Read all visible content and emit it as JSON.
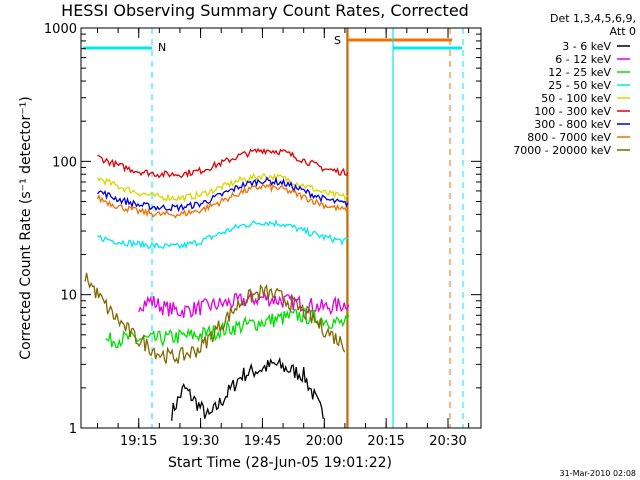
{
  "chart_data": {
    "type": "line",
    "title": "HESSI Observing Summary Count Rates, Corrected",
    "xlabel": "Start Time (28-Jun-05 19:01:22)",
    "ylabel": "Corrected Count Rate (s⁻¹ detector⁻¹)",
    "ylog": true,
    "ylim": [
      1,
      1000
    ],
    "xlim_minutes": [
      19.0167,
      20.6333
    ],
    "x_ticks": [
      "19:15",
      "19:30",
      "19:45",
      "20:00",
      "20:15",
      "20:30"
    ],
    "y_ticks": [
      "1",
      "10",
      "100",
      "1000"
    ],
    "legend_header": [
      "Det 1,3,4,5,6,9,",
      "Att 0"
    ],
    "legend_position": "right",
    "footer_date": "31-Mar-2010 02:08",
    "flag_labels": [
      "N",
      "S"
    ],
    "series": [
      {
        "name": "3 - 6 keV",
        "color": "#000000",
        "times": [
          "19:23",
          "19:26",
          "19:32",
          "19:40",
          "19:48",
          "19:55",
          "20:00"
        ],
        "values": [
          1.3,
          2.0,
          1.2,
          2.5,
          3.0,
          2.5,
          1.2
        ]
      },
      {
        "name": "6 - 12 keV",
        "color": "#e000e0",
        "times": [
          "19:15",
          "19:18",
          "19:21",
          "19:25",
          "19:30",
          "19:35",
          "19:40",
          "19:45",
          "19:50",
          "19:55",
          "20:00",
          "20:05",
          "20:06"
        ],
        "values": [
          8.5,
          9.0,
          8.0,
          7.5,
          8.0,
          8.5,
          9.0,
          9.5,
          9.0,
          8.5,
          8.0,
          8.5,
          9.0
        ]
      },
      {
        "name": "12 - 25 keV",
        "color": "#00e000",
        "times": [
          "19:07",
          "19:12",
          "19:18",
          "19:24",
          "19:30",
          "19:36",
          "19:42",
          "19:48",
          "19:54",
          "20:00",
          "20:05",
          "20:06"
        ],
        "values": [
          4.5,
          4.7,
          4.6,
          4.8,
          5.0,
          5.5,
          6.0,
          6.5,
          7.0,
          6.5,
          6.0,
          6.2
        ]
      },
      {
        "name": "25 - 50 keV",
        "color": "#00e8f0",
        "times": [
          "19:05",
          "19:10",
          "19:15",
          "19:20",
          "19:25",
          "19:30",
          "19:35",
          "19:40",
          "19:45",
          "19:50",
          "19:55",
          "20:00",
          "20:05",
          "20:06"
        ],
        "values": [
          27,
          25,
          24,
          23,
          23,
          25,
          29,
          33,
          35,
          34,
          30,
          27,
          25,
          26
        ]
      },
      {
        "name": "50 - 100 keV",
        "color": "#d8d800",
        "times": [
          "19:05",
          "19:10",
          "19:15",
          "19:20",
          "19:25",
          "19:30",
          "19:35",
          "19:40",
          "19:45",
          "19:50",
          "19:55",
          "20:00",
          "20:05",
          "20:06"
        ],
        "values": [
          75,
          65,
          58,
          54,
          53,
          56,
          64,
          73,
          78,
          75,
          66,
          58,
          54,
          56
        ]
      },
      {
        "name": "100 - 300 keV",
        "color": "#e00000",
        "times": [
          "19:05",
          "19:10",
          "19:15",
          "19:20",
          "19:25",
          "19:30",
          "19:35",
          "19:40",
          "19:45",
          "19:50",
          "19:55",
          "20:00",
          "20:05",
          "20:06"
        ],
        "values": [
          108,
          93,
          84,
          80,
          80,
          85,
          97,
          112,
          122,
          118,
          102,
          88,
          82,
          86
        ]
      },
      {
        "name": "300 - 800 keV",
        "color": "#0000e0",
        "times": [
          "19:05",
          "19:10",
          "19:15",
          "19:20",
          "19:25",
          "19:30",
          "19:35",
          "19:40",
          "19:45",
          "19:50",
          "19:55",
          "20:00",
          "20:05",
          "20:06"
        ],
        "values": [
          60,
          52,
          47,
          45,
          45,
          48,
          56,
          66,
          72,
          69,
          60,
          52,
          48,
          49
        ]
      },
      {
        "name": "800 - 7000 keV",
        "color": "#f07000",
        "times": [
          "19:05",
          "19:10",
          "19:15",
          "19:20",
          "19:25",
          "19:30",
          "19:35",
          "19:40",
          "19:45",
          "19:50",
          "19:55",
          "20:00",
          "20:05",
          "20:06"
        ],
        "values": [
          53,
          46,
          42,
          40,
          40,
          43,
          50,
          59,
          65,
          62,
          54,
          47,
          43,
          45
        ]
      },
      {
        "name": "7000 - 20000 keV",
        "color": "#806800",
        "times": [
          "19:02",
          "19:05",
          "19:08",
          "19:11",
          "19:14",
          "19:17",
          "19:20",
          "19:23",
          "19:26",
          "19:30",
          "19:35",
          "19:40",
          "19:45",
          "19:50",
          "19:55",
          "20:00",
          "20:05"
        ],
        "values": [
          14,
          10,
          7.5,
          6,
          4.8,
          4.2,
          3.6,
          3.4,
          3.5,
          4.0,
          6.0,
          9.0,
          10.5,
          9.5,
          7.5,
          5.5,
          4.2
        ]
      }
    ]
  }
}
